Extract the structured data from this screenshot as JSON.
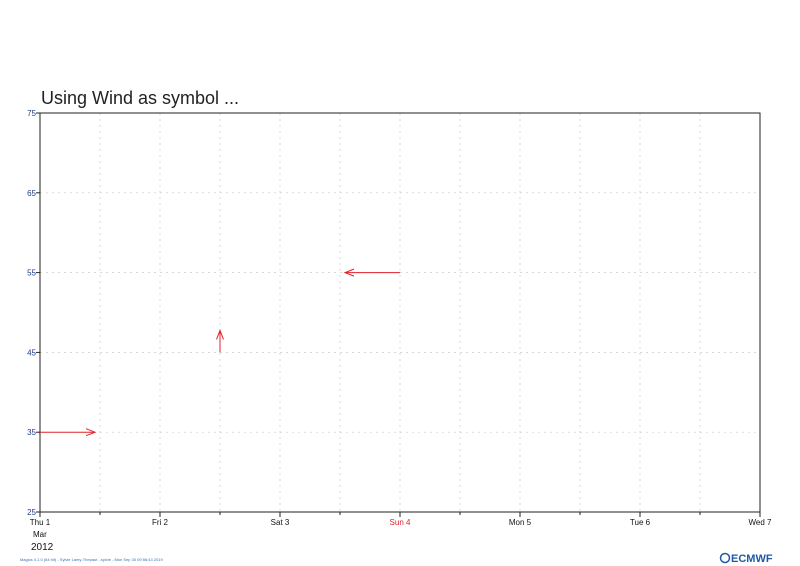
{
  "chart_data": {
    "type": "scatter",
    "symbol": "wind-arrow",
    "title": "Using Wind as  symbol ...",
    "x_ticks": [
      {
        "label": "Thu 1",
        "day": 1,
        "color": "#111111"
      },
      {
        "label": "Fri 2",
        "day": 2,
        "color": "#111111"
      },
      {
        "label": "Sat 3",
        "day": 3,
        "color": "#111111"
      },
      {
        "label": "Sun 4",
        "day": 4,
        "color": "#e0202a"
      },
      {
        "label": "Mon 5",
        "day": 5,
        "color": "#111111"
      },
      {
        "label": "Tue 6",
        "day": 6,
        "color": "#111111"
      },
      {
        "label": "Wed 7",
        "day": 7,
        "color": "#111111"
      }
    ],
    "x_month": "Mar",
    "x_year": "2012",
    "xlim_days": [
      1,
      7
    ],
    "ylim": [
      25,
      75
    ],
    "y_ticks": [
      25,
      35,
      45,
      55,
      65,
      75
    ],
    "grid": true,
    "arrow_color": "#e0202a",
    "points": [
      {
        "day": 1.0,
        "y": 35,
        "u": 1,
        "v": 0
      },
      {
        "day": 2.5,
        "y": 45,
        "u": 0,
        "v": 1
      },
      {
        "day": 4.0,
        "y": 55,
        "u": -1,
        "v": 0
      }
    ]
  },
  "footer": {
    "text": "Magics 4.1.0 (64 bit) - Sylvie Lamy-Thepaut - sylvie - Mon Sep 30 09:56:43 2019",
    "logo": "ECMWF"
  }
}
